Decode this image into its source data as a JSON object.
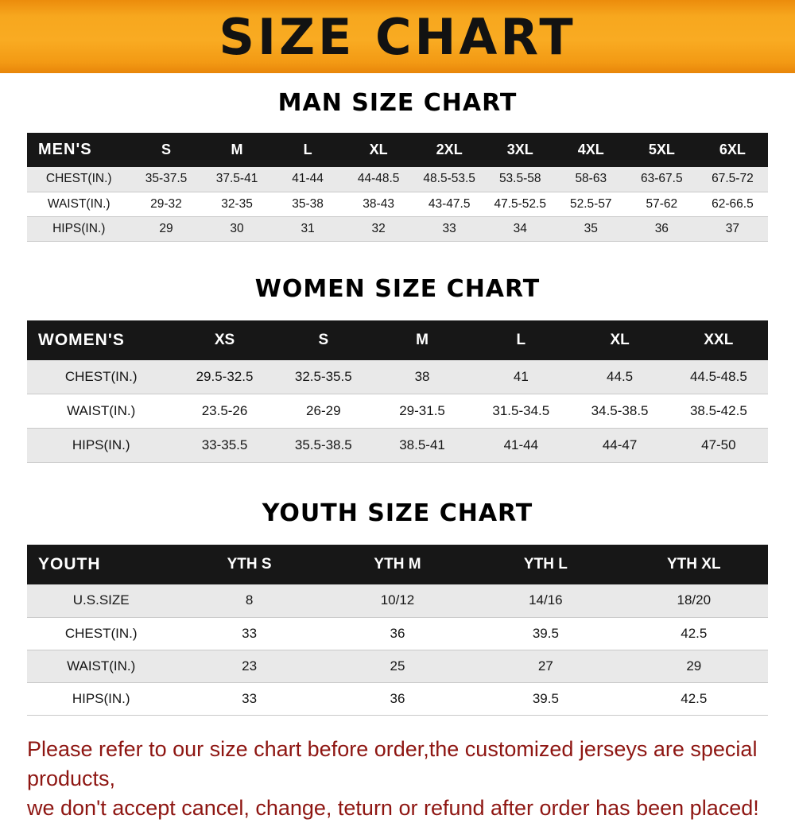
{
  "banner": {
    "title": "SIZE CHART",
    "bg_color": "#F5A01B",
    "text_color": "#121212"
  },
  "chart_data": [
    {
      "type": "table",
      "title": "MAN SIZE CHART",
      "columns": [
        "MEN'S",
        "S",
        "M",
        "L",
        "XL",
        "2XL",
        "3XL",
        "4XL",
        "5XL",
        "6XL"
      ],
      "rows": [
        [
          "CHEST(IN.)",
          "35-37.5",
          "37.5-41",
          "41-44",
          "44-48.5",
          "48.5-53.5",
          "53.5-58",
          "58-63",
          "63-67.5",
          "67.5-72"
        ],
        [
          "WAIST(IN.)",
          "29-32",
          "32-35",
          "35-38",
          "38-43",
          "43-47.5",
          "47.5-52.5",
          "52.5-57",
          "57-62",
          "62-66.5"
        ],
        [
          "HIPS(IN.)",
          "29",
          "30",
          "31",
          "32",
          "33",
          "34",
          "35",
          "36",
          "37"
        ]
      ]
    },
    {
      "type": "table",
      "title": "WOMEN SIZE CHART",
      "columns": [
        "WOMEN'S",
        "XS",
        "S",
        "M",
        "L",
        "XL",
        "XXL"
      ],
      "rows": [
        [
          "CHEST(IN.)",
          "29.5-32.5",
          "32.5-35.5",
          "38",
          "41",
          "44.5",
          "44.5-48.5"
        ],
        [
          "WAIST(IN.)",
          "23.5-26",
          "26-29",
          "29-31.5",
          "31.5-34.5",
          "34.5-38.5",
          "38.5-42.5"
        ],
        [
          "HIPS(IN.)",
          "33-35.5",
          "35.5-38.5",
          "38.5-41",
          "41-44",
          "44-47",
          "47-50"
        ]
      ]
    },
    {
      "type": "table",
      "title": "YOUTH SIZE CHART",
      "columns": [
        "YOUTH",
        "YTH S",
        "YTH M",
        "YTH L",
        "YTH XL"
      ],
      "rows": [
        [
          "U.S.SIZE",
          "8",
          "10/12",
          "14/16",
          "18/20"
        ],
        [
          "CHEST(IN.)",
          "33",
          "36",
          "39.5",
          "42.5"
        ],
        [
          "WAIST(IN.)",
          "23",
          "25",
          "27",
          "29"
        ],
        [
          "HIPS(IN.)",
          "33",
          "36",
          "39.5",
          "42.5"
        ]
      ]
    }
  ],
  "footer": {
    "line1": "Please refer to our size chart before order,the customized jerseys are special products,",
    "line2": "we don't accept cancel, change, teturn or refund after order has been placed!",
    "text_color": "#8E1612"
  }
}
